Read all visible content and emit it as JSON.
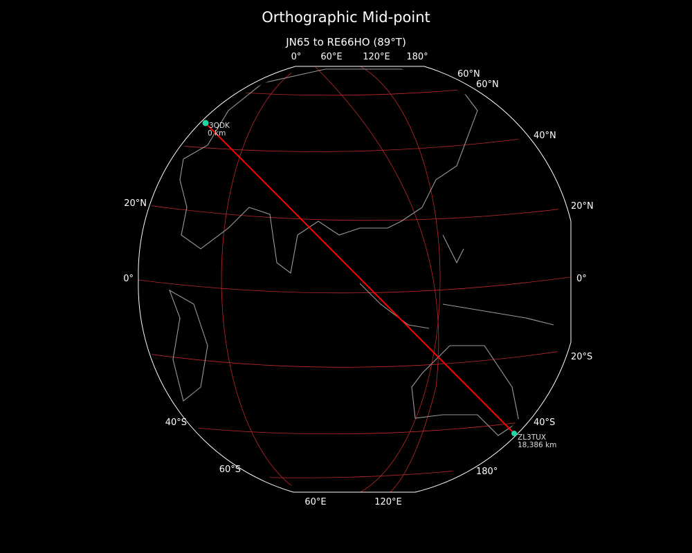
{
  "title": "Orthographic Mid-point",
  "subtitle": "JN65 to RE66HO (89°T)",
  "colors": {
    "background": "#000000",
    "graticule": "#c0282a",
    "coast": "#9a9a9a",
    "path": "#ff0000",
    "marker": "#1fd6a6",
    "border": "#ffffff"
  },
  "top_lon_labels": [
    "0°",
    "60°E",
    "120°E",
    "180°"
  ],
  "bottom_lon_labels": [
    "60°E",
    "120°E"
  ],
  "right_labels": [
    "60°N",
    "60°N",
    "40°N",
    "20°N",
    "0°",
    "20°S",
    "40°S",
    "180°"
  ],
  "left_labels": [
    "20°N",
    "0°",
    "40°S",
    "60°S"
  ],
  "start": {
    "call": "3QDK",
    "distance": "0 km"
  },
  "end": {
    "call": "ZL3TUX",
    "distance": "18,386 km"
  }
}
